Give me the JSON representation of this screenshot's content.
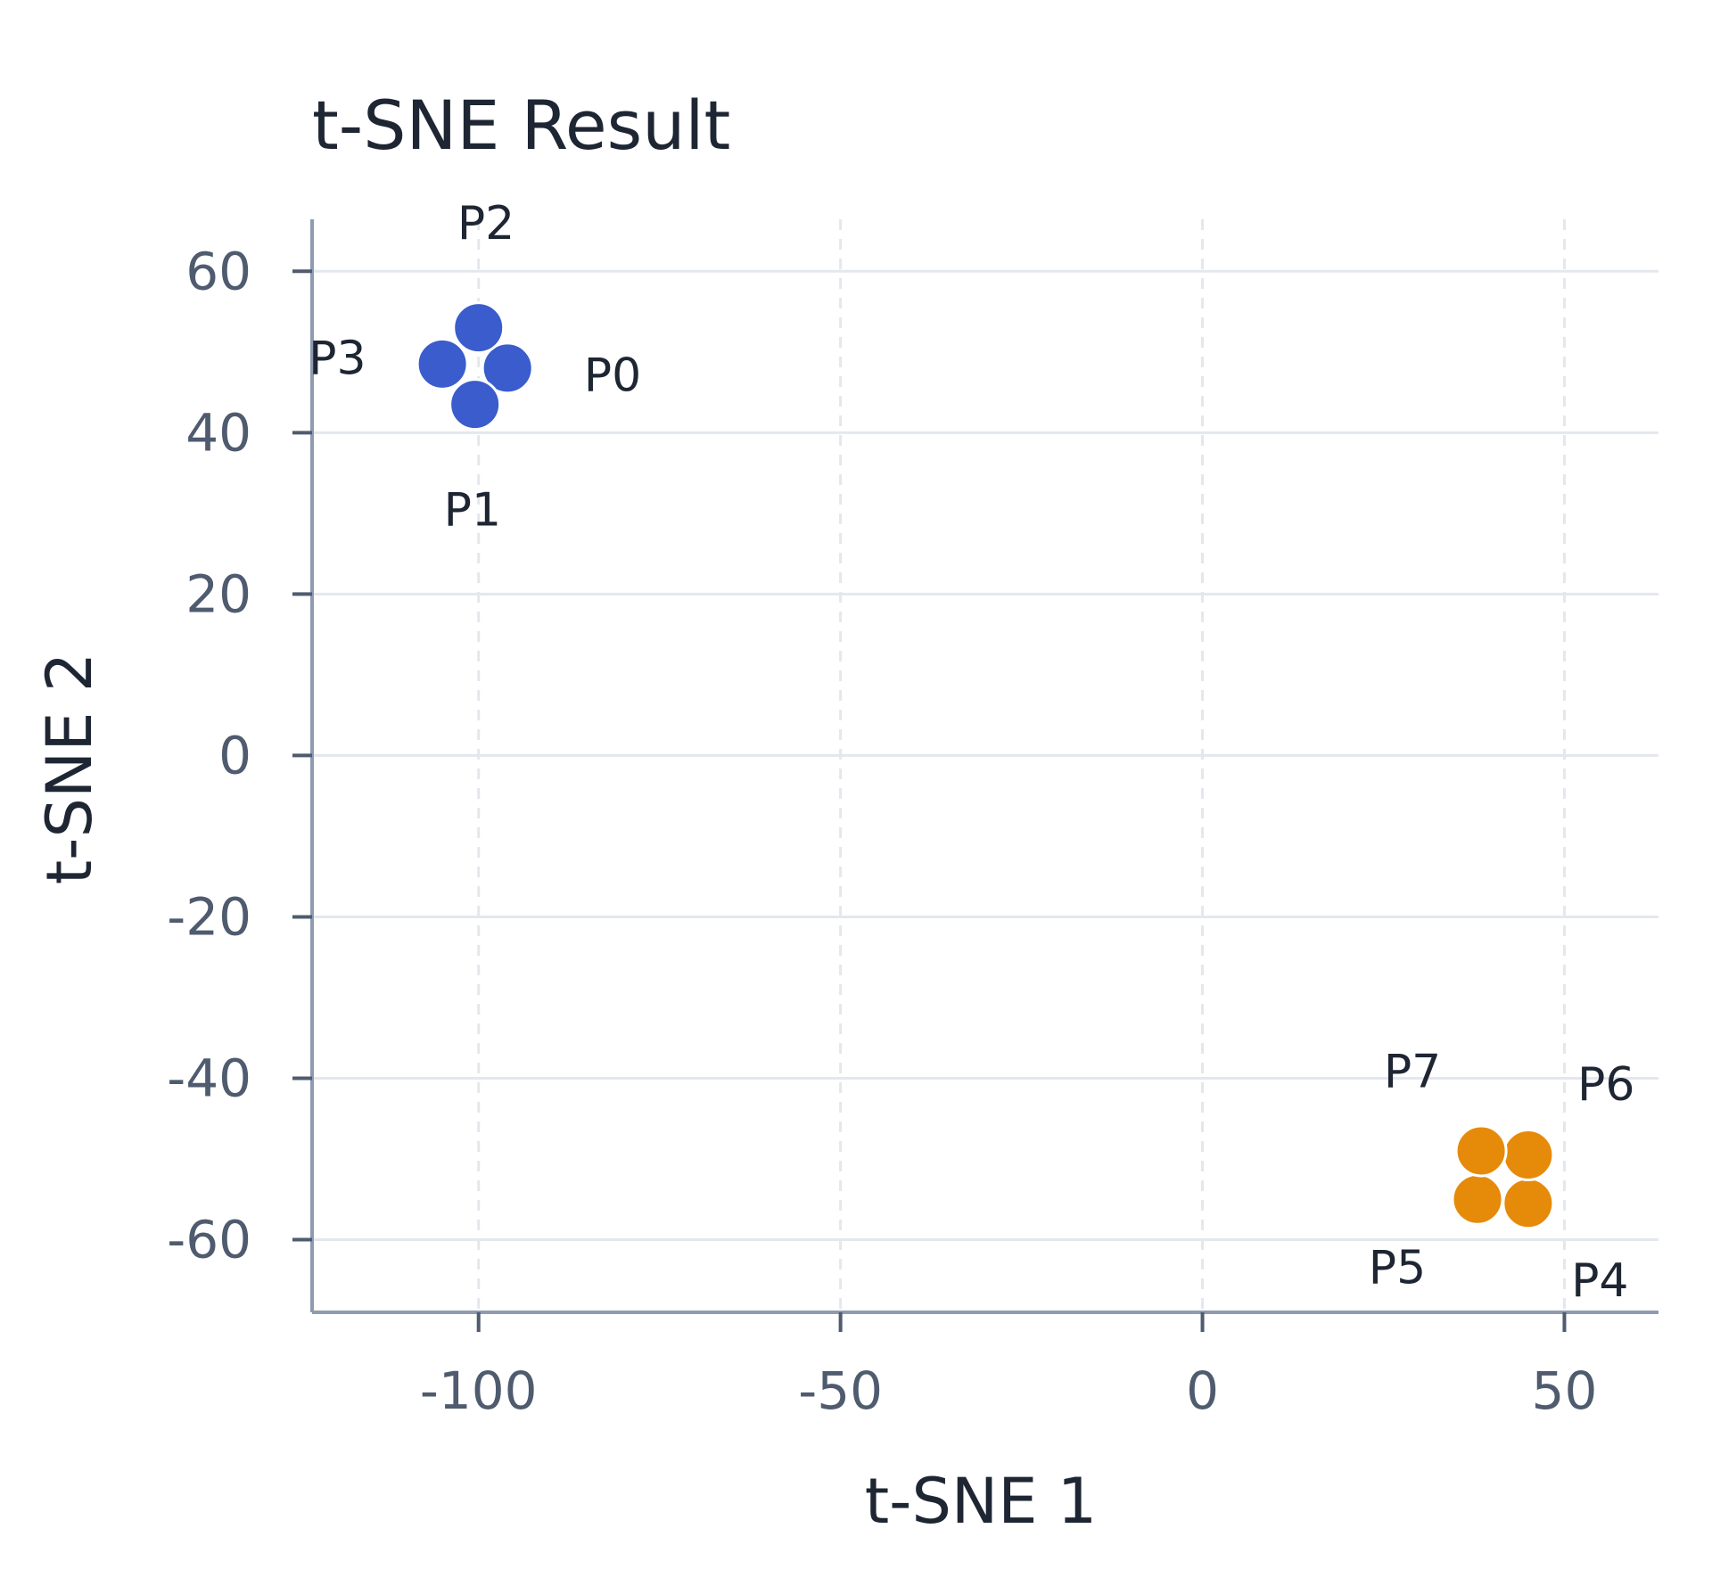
{
  "chart_data": {
    "type": "scatter",
    "title": "t-SNE Result",
    "xlabel": "t-SNE 1",
    "ylabel": "t-SNE 2",
    "xlim": [
      -123,
      63
    ],
    "ylim": [
      -69,
      66
    ],
    "xticks": [
      -100,
      -50,
      0,
      50
    ],
    "xtick_labels": [
      "-100",
      "-50",
      "0",
      "50"
    ],
    "yticks": [
      -60,
      -40,
      -20,
      0,
      20,
      40,
      60
    ],
    "ytick_labels": [
      "-60",
      "-40",
      "-20",
      "0",
      "20",
      "40",
      "60"
    ],
    "grid": true,
    "legend": false,
    "points": [
      {
        "label": "P0",
        "x": -96,
        "y": 48,
        "color": "#3a5ccc"
      },
      {
        "label": "P1",
        "x": -100.5,
        "y": 43.5,
        "color": "#3a5ccc"
      },
      {
        "label": "P2",
        "x": -100,
        "y": 53,
        "color": "#3a5ccc"
      },
      {
        "label": "P3",
        "x": -105,
        "y": 48.5,
        "color": "#3a5ccc"
      },
      {
        "label": "P4",
        "x": 45,
        "y": -55.5,
        "color": "#e68a0a"
      },
      {
        "label": "P5",
        "x": 38,
        "y": -55,
        "color": "#e68a0a"
      },
      {
        "label": "P6",
        "x": 45,
        "y": -49.5,
        "color": "#e68a0a"
      },
      {
        "label": "P7",
        "x": 38.5,
        "y": -49,
        "color": "#e68a0a"
      }
    ]
  }
}
